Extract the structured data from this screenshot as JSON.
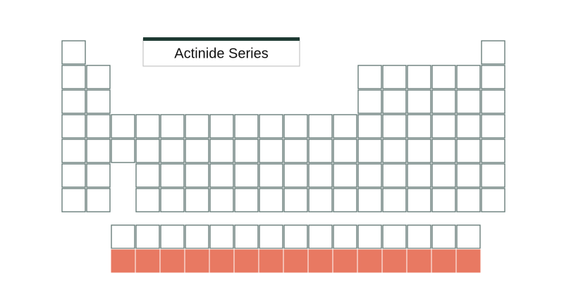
{
  "title": "Actinide Series"
}
